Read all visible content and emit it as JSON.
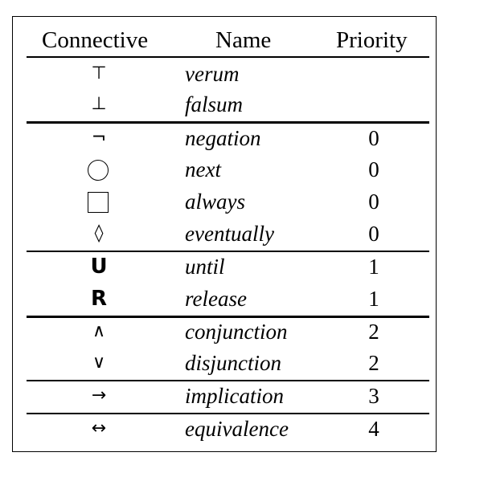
{
  "headers": {
    "connective": "Connective",
    "name": "Name",
    "priority": "Priority"
  },
  "rows": [
    {
      "symbol": "⊤",
      "name": "verum",
      "priority": ""
    },
    {
      "symbol": "⊥",
      "name": "falsum",
      "priority": ""
    },
    {
      "symbol": "¬",
      "name": "negation",
      "priority": "0"
    },
    {
      "symbol": "circle",
      "name": "next",
      "priority": "0"
    },
    {
      "symbol": "square",
      "name": "always",
      "priority": "0"
    },
    {
      "symbol": "◊",
      "name": "eventually",
      "priority": "0"
    },
    {
      "symbol": "U",
      "name": "until",
      "priority": "1"
    },
    {
      "symbol": "R",
      "name": "release",
      "priority": "1"
    },
    {
      "symbol": "∧",
      "name": "conjunction",
      "priority": "2"
    },
    {
      "symbol": "∨",
      "name": "disjunction",
      "priority": "2"
    },
    {
      "symbol": "→",
      "name": "implication",
      "priority": "3"
    },
    {
      "symbol": "↔",
      "name": "equivalence",
      "priority": "4"
    }
  ]
}
